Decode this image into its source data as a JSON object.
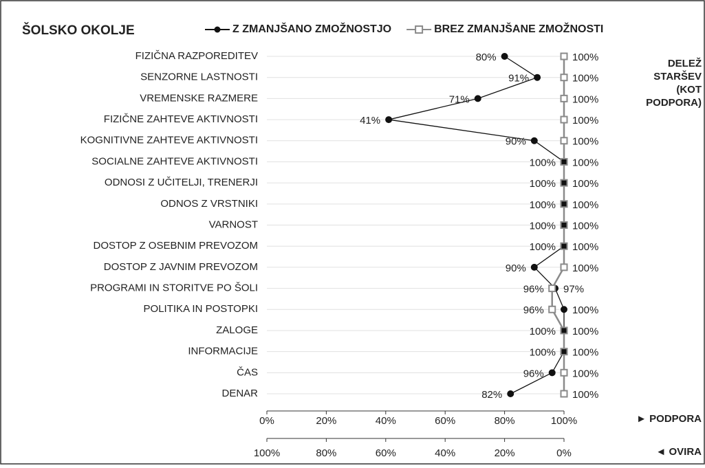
{
  "chart_data": {
    "type": "line",
    "title": "ŠOLSKO OKOLJE",
    "categories": [
      "FIZIČNA RAZPOREDITEV",
      "SENZORNE LASTNOSTI",
      "VREMENSKE RAZMERE",
      "FIZIČNE ZAHTEVE AKTIVNOSTI",
      "KOGNITIVNE ZAHTEVE AKTIVNOSTI",
      "SOCIALNE ZAHTEVE AKTIVNOSTI",
      "ODNOSI Z UČITELJI, TRENERJI",
      "ODNOS Z VRSTNIKI",
      "VARNOST",
      "DOSTOP Z OSEBNIM PREVOZOM",
      "DOSTOP Z JAVNIM PREVOZOM",
      "PROGRAMI IN STORITVE PO ŠOLI",
      "POLITIKA IN POSTOPKI",
      "ZALOGE",
      "INFORMACIJE",
      "ČAS",
      "DENAR"
    ],
    "series": [
      {
        "name": "Z ZMANJŠANO ZMOŽNOSTJO",
        "color": "#111111",
        "marker": "circle",
        "values": [
          80,
          91,
          71,
          41,
          90,
          100,
          100,
          100,
          100,
          100,
          90,
          97,
          100,
          100,
          100,
          96,
          82
        ],
        "value_labels": [
          "80%",
          "91%",
          "71%",
          "41%",
          "90%",
          "100%",
          "100%",
          "100%",
          "100%",
          "100%",
          "90%",
          "97%",
          "100%",
          "100%",
          "100%",
          "96%",
          "82%"
        ]
      },
      {
        "name": "BREZ ZMANJŠANE ZMOŽNOSTI",
        "color": "#8a8a8a",
        "marker": "square",
        "values": [
          100,
          100,
          100,
          100,
          100,
          100,
          100,
          100,
          100,
          100,
          100,
          96,
          96,
          100,
          100,
          100,
          100
        ],
        "value_labels": [
          "100%",
          "100%",
          "100%",
          "100%",
          "100%",
          "100%",
          "100%",
          "100%",
          "100%",
          "100%",
          "100%",
          "96%",
          "96%",
          "100%",
          "100%",
          "100%",
          "100%"
        ]
      }
    ],
    "xlim": [
      0,
      100
    ],
    "xticks": [
      {
        "value": 0,
        "label": "0%"
      },
      {
        "value": 20,
        "label": "20%"
      },
      {
        "value": 40,
        "label": "40%"
      },
      {
        "value": 60,
        "label": "60%"
      },
      {
        "value": 80,
        "label": "80%"
      },
      {
        "value": 100,
        "label": "100%"
      }
    ],
    "xlabel": "► PODPORA",
    "x2lim": [
      100,
      0
    ],
    "x2ticks": [
      {
        "value": 100,
        "label": "100%"
      },
      {
        "value": 80,
        "label": "80%"
      },
      {
        "value": 60,
        "label": "60%"
      },
      {
        "value": 40,
        "label": "40%"
      },
      {
        "value": 20,
        "label": "20%"
      },
      {
        "value": 0,
        "label": "0%"
      }
    ],
    "x2label": "◄ OVIRA",
    "annotation": [
      "DELEŽ",
      "STARŠEV",
      "(KOT",
      "PODPORA)"
    ],
    "grid": true
  }
}
